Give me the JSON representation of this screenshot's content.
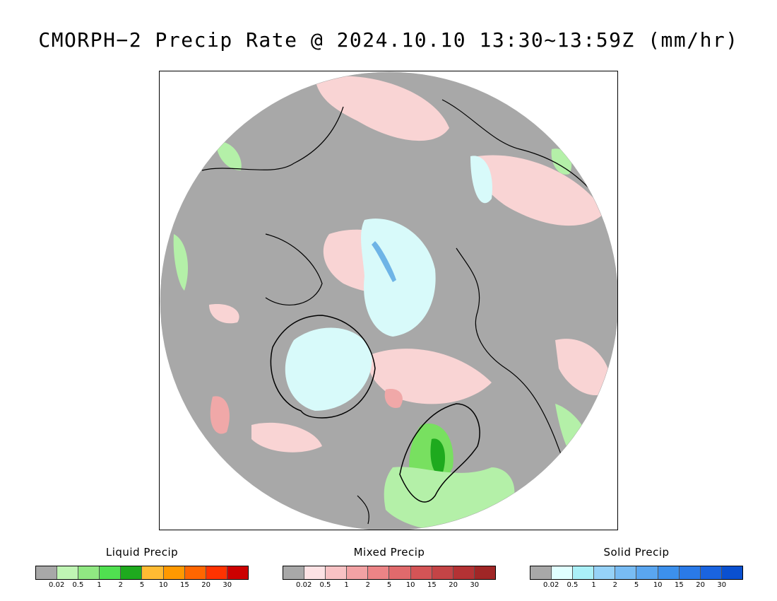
{
  "title": "CMORPH−2 Precip Rate @ 2024.10.10 13:30~13:59Z (mm/hr)",
  "map": {
    "projection": "north-polar-stereographic",
    "colors": {
      "no_precip": "#a8a8a8",
      "ocean_background": "#ffffff",
      "coastline": "#000000",
      "mixed_light": "#f9d4d4",
      "mixed_moderate": "#f0a8a8",
      "mixed_heavy": "#e07878",
      "liquid_light": "#b4f0a8",
      "liquid_moderate": "#78e060",
      "liquid_heavy": "#1eaa1e",
      "solid_light": "#d8fafa",
      "solid_moderate": "#a8e0f0",
      "solid_heavy": "#6eb4e6"
    }
  },
  "legends": [
    {
      "title": "Liquid Precip",
      "colors": [
        "#a8a8a8",
        "#c0f5b4",
        "#90e882",
        "#50e050",
        "#1eaa1e",
        "#ffbb33",
        "#ff9900",
        "#ff6600",
        "#ff3300",
        "#cc0000"
      ],
      "ticks": [
        "0.02",
        "0.5",
        "1",
        "2",
        "5",
        "10",
        "15",
        "20",
        "30"
      ]
    },
    {
      "title": "Mixed Precip",
      "colors": [
        "#a8a8a8",
        "#fde2e4",
        "#f8c2c4",
        "#f2a2a4",
        "#ec8486",
        "#e06a6c",
        "#d45456",
        "#c44446",
        "#b43234",
        "#a02626"
      ],
      "ticks": [
        "0.02",
        "0.5",
        "1",
        "2",
        "5",
        "10",
        "15",
        "20",
        "30"
      ]
    },
    {
      "title": "Solid Precip",
      "colors": [
        "#a8a8a8",
        "#e0ffff",
        "#aaf0f8",
        "#96d2f8",
        "#78bcf4",
        "#5aa6f0",
        "#3c90ec",
        "#2a7ae8",
        "#1a64e0",
        "#0a50d0"
      ],
      "ticks": [
        "0.02",
        "0.5",
        "1",
        "2",
        "5",
        "10",
        "15",
        "20",
        "30"
      ]
    }
  ]
}
